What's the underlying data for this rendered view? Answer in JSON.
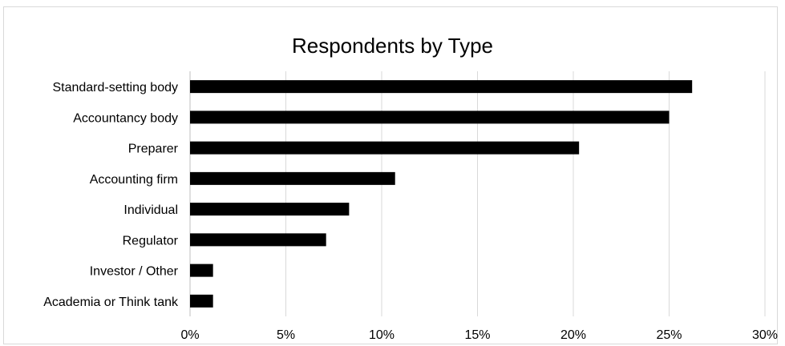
{
  "chart_data": {
    "type": "bar",
    "orientation": "horizontal",
    "title": "Respondents by Type",
    "categories": [
      "Standard-setting body",
      "Accountancy body",
      "Preparer",
      "Accounting firm",
      "Individual",
      "Regulator",
      "Investor / Other",
      "Academia or Think tank"
    ],
    "values": [
      26.2,
      25.0,
      20.3,
      10.7,
      8.3,
      7.1,
      1.2,
      1.2
    ],
    "x_ticks": [
      "0%",
      "5%",
      "10%",
      "15%",
      "20%",
      "25%",
      "30%"
    ],
    "xlim": [
      0,
      30
    ],
    "grid": true,
    "bar_color": "#000000",
    "grid_color": "#d9d9d9"
  }
}
